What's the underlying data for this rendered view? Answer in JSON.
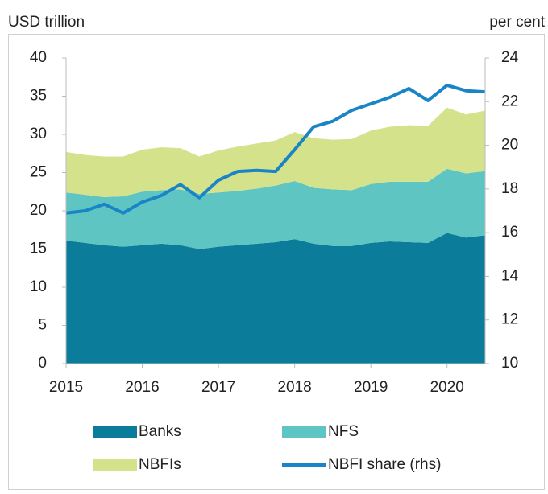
{
  "chart_data": {
    "type": "stacked_area_line",
    "y_label": "USD trillion",
    "y2_label": "per cent",
    "x": [
      2015,
      2015.25,
      2015.5,
      2015.75,
      2016,
      2016.25,
      2016.5,
      2016.75,
      2017,
      2017.25,
      2017.5,
      2017.75,
      2018,
      2018.25,
      2018.5,
      2018.75,
      2019,
      2019.25,
      2019.5,
      2019.75,
      2020,
      2020.25,
      2020.5
    ],
    "xlim": [
      2015,
      2020.5
    ],
    "xticks": [
      2015,
      2016,
      2017,
      2018,
      2019,
      2020
    ],
    "ylim": [
      0,
      40
    ],
    "yticks": [
      0,
      5,
      10,
      15,
      20,
      25,
      30,
      35,
      40
    ],
    "y2lim": [
      10,
      24
    ],
    "y2ticks": [
      10,
      12,
      14,
      16,
      18,
      20,
      22,
      24
    ],
    "grid": false,
    "series": [
      {
        "name": "Banks",
        "type": "area",
        "color": "#0b7d9a",
        "values": [
          16.1,
          15.8,
          15.5,
          15.3,
          15.5,
          15.7,
          15.5,
          15.0,
          15.3,
          15.5,
          15.7,
          15.9,
          16.3,
          15.7,
          15.4,
          15.4,
          15.8,
          16.0,
          15.9,
          15.8,
          17.1,
          16.5,
          16.8
        ]
      },
      {
        "name": "NFS",
        "type": "area",
        "color": "#5fc5c2",
        "values": [
          6.3,
          6.3,
          6.3,
          6.6,
          7.0,
          7.0,
          7.3,
          7.2,
          7.1,
          7.1,
          7.2,
          7.4,
          7.6,
          7.3,
          7.4,
          7.3,
          7.7,
          7.8,
          7.9,
          8.0,
          8.4,
          8.4,
          8.4
        ]
      },
      {
        "name": "NBFIs",
        "type": "area",
        "color": "#d5e28c",
        "values": [
          5.3,
          5.2,
          5.3,
          5.2,
          5.5,
          5.6,
          5.4,
          4.9,
          5.5,
          5.8,
          5.9,
          5.9,
          6.4,
          6.5,
          6.5,
          6.7,
          7.0,
          7.2,
          7.4,
          7.3,
          8.0,
          7.7,
          7.9
        ]
      },
      {
        "name": "NBFI share (rhs)",
        "type": "line",
        "axis": "y2",
        "color": "#1a85c6",
        "values": [
          16.9,
          17.0,
          17.3,
          16.9,
          17.4,
          17.7,
          18.2,
          17.6,
          18.4,
          18.8,
          18.85,
          18.8,
          19.8,
          20.85,
          21.1,
          21.6,
          21.9,
          22.2,
          22.6,
          22.05,
          22.75,
          22.5,
          22.45
        ]
      }
    ]
  }
}
